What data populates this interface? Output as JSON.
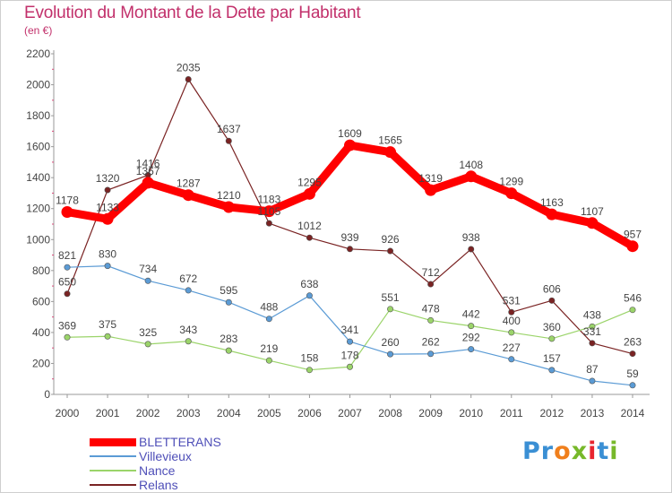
{
  "title": "Evolution du Montant de la Dette par Habitant",
  "subtitle": "(en €)",
  "logo_text": "Proxiti",
  "logo_colors": [
    "#3a8fd4",
    "#3a8fd4",
    "#f07f1c",
    "#77b82a",
    "#e8252f",
    "#3a8fd4",
    "#77b82a"
  ],
  "chart_data": {
    "type": "line",
    "x": [
      "2000",
      "2001",
      "2002",
      "2003",
      "2004",
      "2005",
      "2006",
      "2007",
      "2008",
      "2009",
      "2010",
      "2011",
      "2012",
      "2013",
      "2014"
    ],
    "ylim": [
      0,
      2200
    ],
    "yticks": [
      "0",
      "200",
      "400",
      "600",
      "800",
      "1000",
      "1200",
      "1400",
      "1600",
      "1800",
      "2000",
      "2200"
    ],
    "grid": false,
    "legend_position": "bottom-left",
    "series": [
      {
        "name": "BLETTERANS",
        "color": "#ff0000",
        "values": [
          1178,
          1133,
          1367,
          1287,
          1210,
          1183,
          1295,
          1609,
          1565,
          1319,
          1408,
          1299,
          1163,
          1107,
          957
        ],
        "labels": [
          "1178",
          "1133",
          "1367",
          "1287",
          "1210",
          "1183",
          "1295",
          "1609",
          "1565",
          "1319",
          "1408",
          "1299",
          "1163",
          "1107",
          "957"
        ]
      },
      {
        "name": "Villevieux",
        "color": "#5b9bd5",
        "values": [
          821,
          830,
          734,
          672,
          595,
          488,
          638,
          341,
          260,
          262,
          292,
          227,
          157,
          87,
          59
        ],
        "labels": [
          "821",
          "830",
          "734",
          "672",
          "595",
          "488",
          "638",
          "341",
          "260",
          "262",
          "292",
          "227",
          "157",
          "87",
          "59"
        ]
      },
      {
        "name": "Nance",
        "color": "#9bd46a",
        "values": [
          369,
          375,
          325,
          343,
          283,
          219,
          158,
          178,
          551,
          478,
          442,
          400,
          360,
          438,
          546
        ],
        "labels": [
          "369",
          "375",
          "325",
          "343",
          "283",
          "219",
          "158",
          "178",
          "551",
          "478",
          "442",
          "400",
          "360",
          "438",
          "546"
        ]
      },
      {
        "name": "Relans",
        "color": "#7a2323",
        "values": [
          650,
          1320,
          1416,
          2035,
          1637,
          1105,
          1012,
          939,
          926,
          712,
          938,
          531,
          606,
          331,
          263
        ],
        "labels": [
          "650",
          "1320",
          "1416",
          "2035",
          "1637",
          "1105",
          "1012",
          "939",
          "926",
          "712",
          "938",
          "531",
          "606",
          "331",
          "263"
        ]
      }
    ]
  }
}
